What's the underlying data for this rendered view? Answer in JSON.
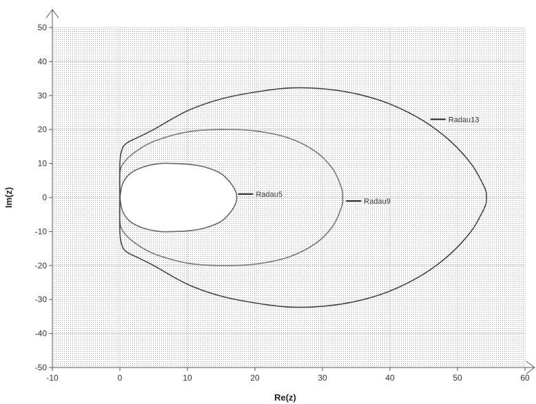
{
  "chart_data": {
    "type": "line",
    "title": "",
    "xlabel": "Re(z)",
    "ylabel": "Im(z)",
    "xlim": [
      -10,
      60
    ],
    "ylim": [
      -50,
      50
    ],
    "x_ticks": [
      -10,
      0,
      10,
      20,
      30,
      40,
      50,
      60
    ],
    "y_ticks": [
      -50,
      -40,
      -30,
      -20,
      -10,
      0,
      10,
      20,
      30,
      40,
      50
    ],
    "grid": true,
    "legend": "none",
    "shading": "dotted fill outside each stability boundary",
    "series": [
      {
        "name": "Radau5",
        "color": "#666666",
        "x": [
          0,
          0.4,
          1.5,
          3.5,
          6,
          8,
          10,
          12.5,
          15,
          16.5,
          17.2,
          17.3,
          17.2,
          16.5,
          15,
          12.5,
          10,
          8,
          6,
          3.5,
          1.5,
          0.4,
          0
        ],
        "y": [
          0,
          4,
          7,
          9,
          10,
          10,
          9.8,
          9,
          7,
          4,
          1.5,
          0,
          -1.5,
          -4,
          -7,
          -9,
          -9.8,
          -10,
          -10,
          -9,
          -7,
          -4,
          0
        ]
      },
      {
        "name": "Radau9",
        "color": "#777777",
        "x": [
          0,
          0,
          0.5,
          2,
          5,
          10,
          15,
          20,
          25,
          29,
          31.5,
          32.8,
          33,
          32.8,
          31.5,
          29,
          25,
          20,
          15,
          10,
          5,
          2,
          0.5,
          0,
          0
        ],
        "y": [
          0,
          7,
          10,
          13,
          16.5,
          19.3,
          20,
          19.6,
          17.5,
          13.5,
          8.5,
          3,
          0,
          -3,
          -8.5,
          -13.5,
          -17.5,
          -19.6,
          -20,
          -19.3,
          -16.5,
          -13,
          -10,
          -7,
          0
        ]
      },
      {
        "name": "Radau13",
        "color": "#444444",
        "x": [
          0,
          0,
          0.3,
          1,
          3,
          5,
          10,
          15,
          20,
          25,
          30,
          35,
          40,
          45,
          49,
          52,
          53.5,
          54.2,
          54.3,
          54.2,
          53.5,
          52,
          49,
          45,
          40,
          35,
          30,
          25,
          20,
          15,
          10,
          5,
          3,
          1,
          0.3,
          0,
          0
        ],
        "y": [
          0,
          10,
          14,
          16,
          18,
          20,
          25.5,
          29,
          31,
          32.2,
          32,
          30.5,
          27.5,
          22.5,
          16.5,
          10,
          5,
          2,
          0,
          -2,
          -5,
          -10,
          -16.5,
          -22.5,
          -27.5,
          -30.5,
          -32,
          -32.2,
          -31,
          -29,
          -25.5,
          -20,
          -18,
          -16,
          -14,
          -10,
          0
        ]
      }
    ],
    "annotations": [
      {
        "text": "Radau5",
        "series": "Radau5",
        "x": 17.5,
        "y": 1
      },
      {
        "text": "Radau9",
        "series": "Radau9",
        "x": 33.5,
        "y": -1
      },
      {
        "text": "Radau13",
        "series": "Radau13",
        "x": 46,
        "y": 23
      }
    ]
  }
}
